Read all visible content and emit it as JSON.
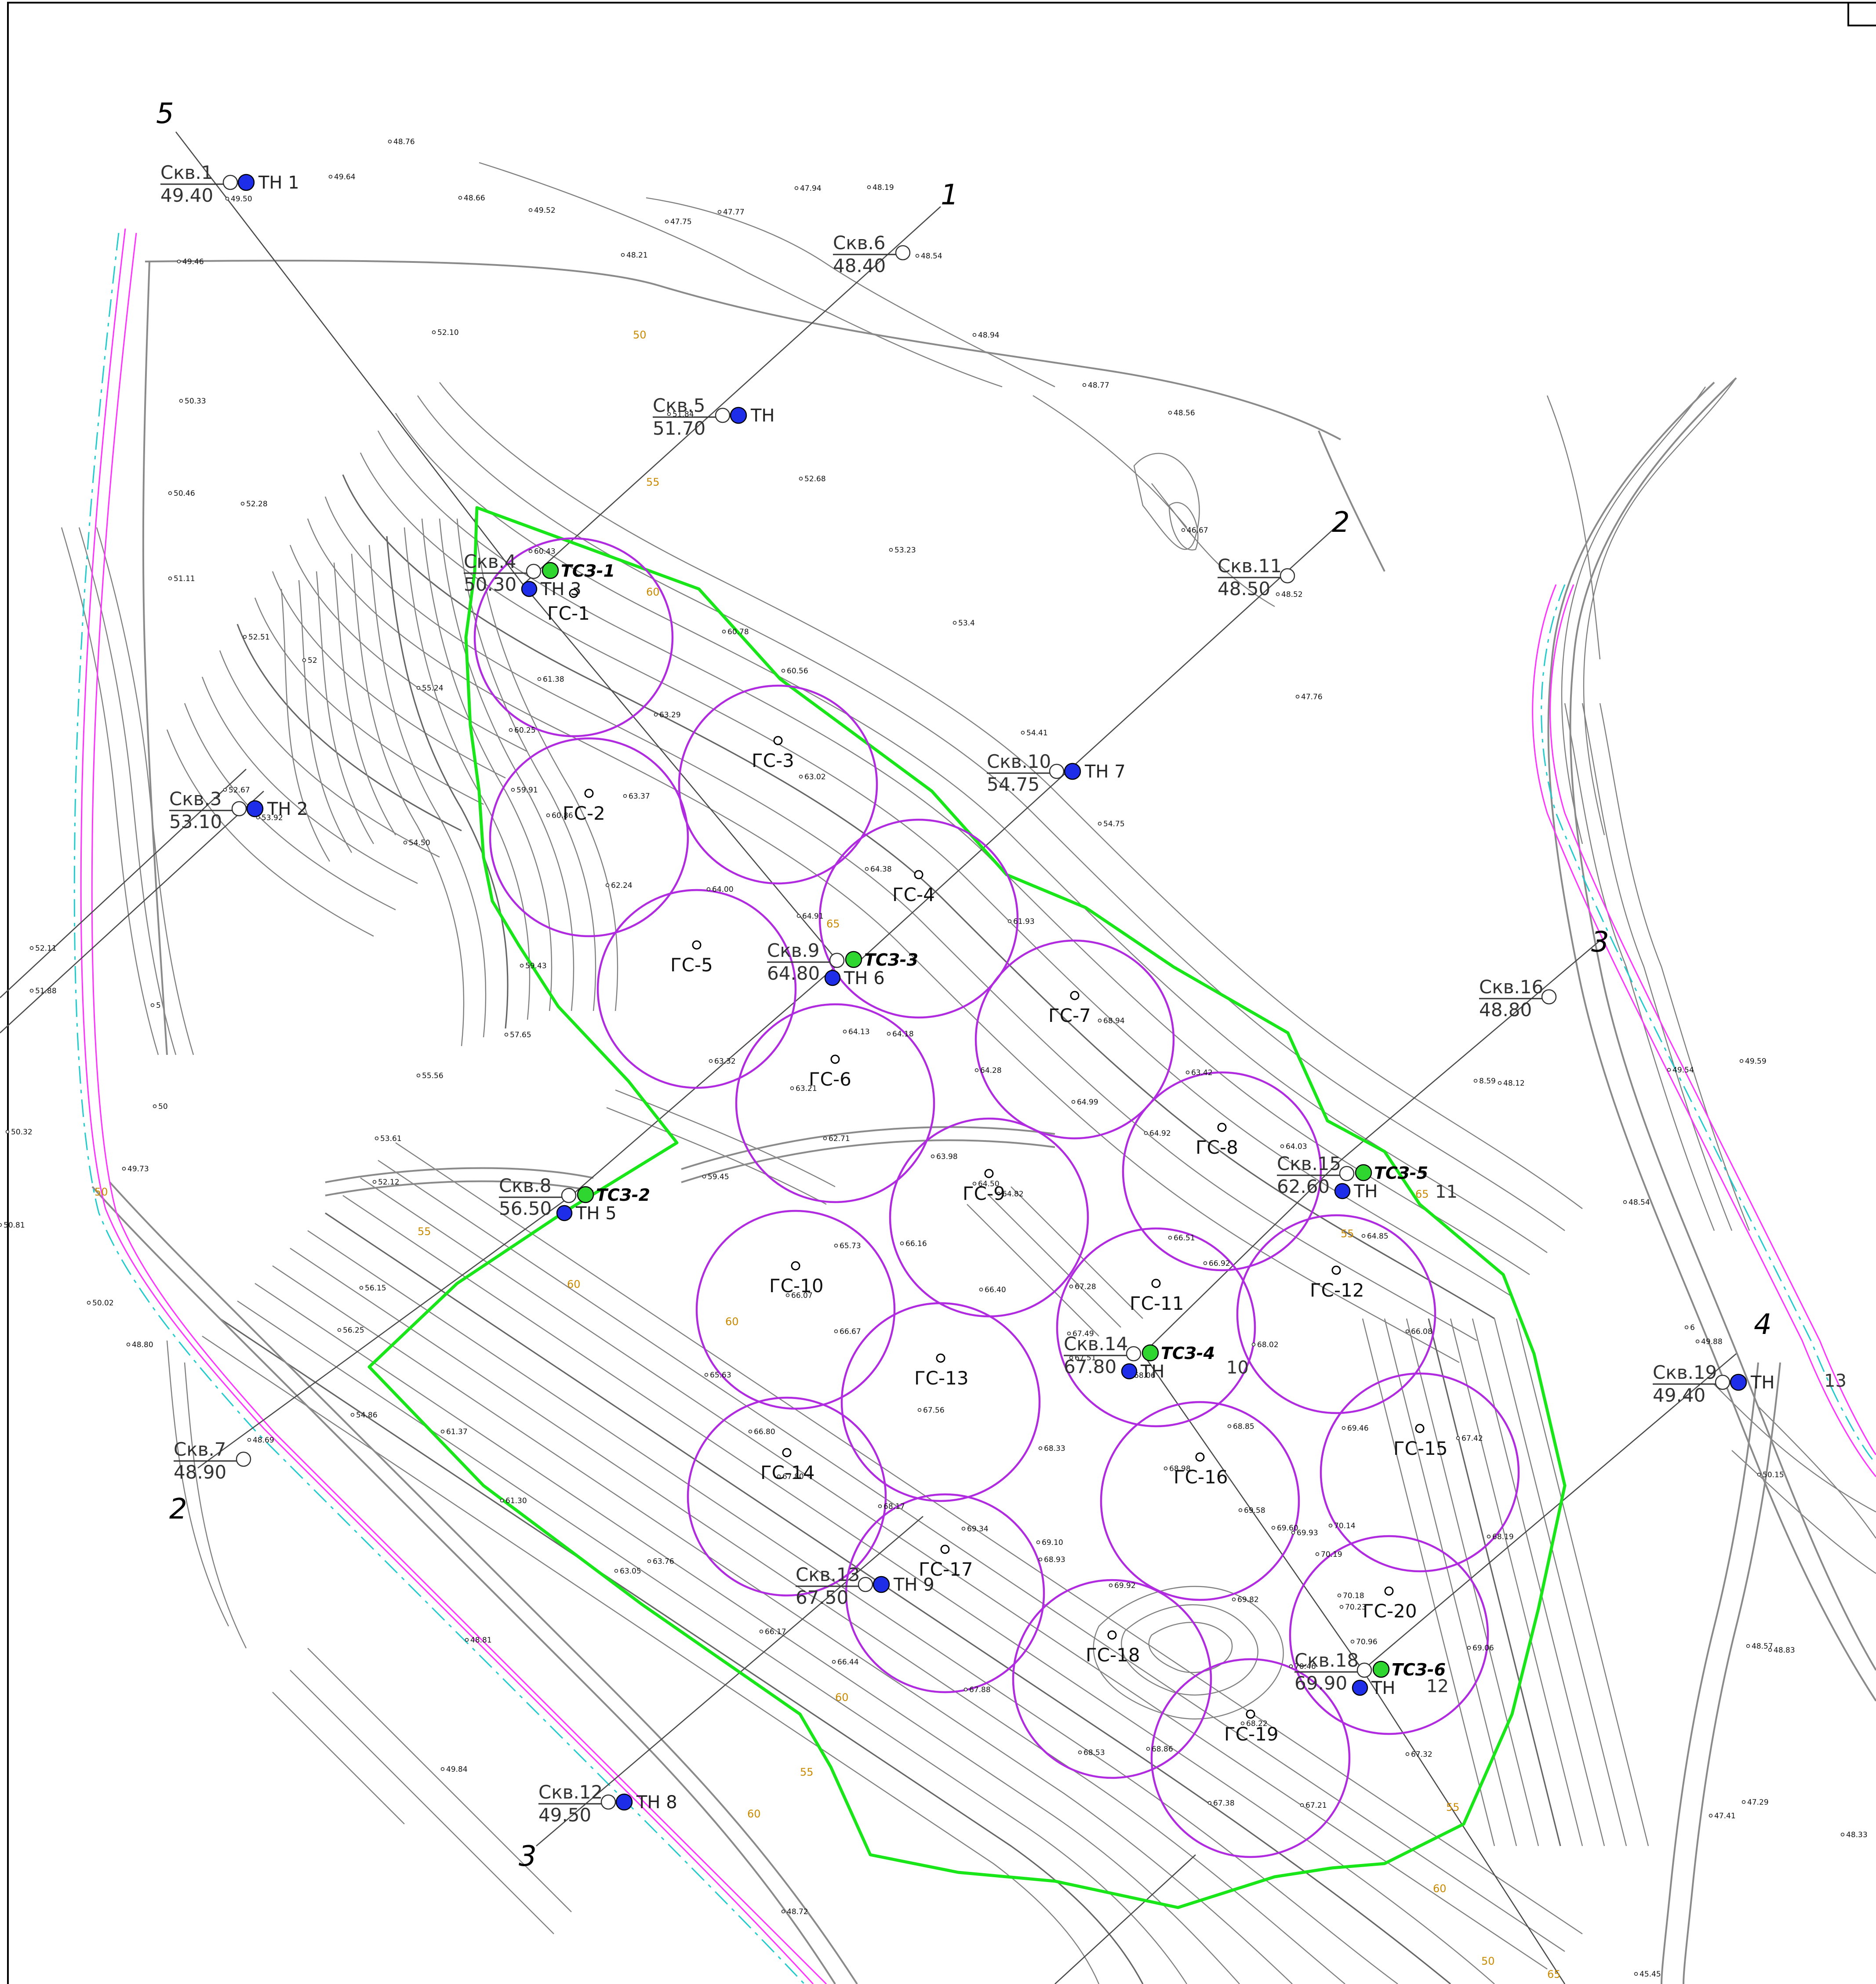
{
  "map": {
    "wells": [
      {
        "id": "w1",
        "label": "Скв.1",
        "elev": "49.40",
        "th": "ТН 1"
      },
      {
        "id": "w3",
        "label": "Скв.3",
        "elev": "53.10",
        "th": "ТН 2"
      },
      {
        "id": "w4",
        "label": "Скв.4",
        "elev": "50.30",
        "th": "ТН 3",
        "tsz": "ТСЗ-1"
      },
      {
        "id": "w5",
        "label": "Скв.5",
        "elev": "51.70",
        "th": "ТН"
      },
      {
        "id": "w6",
        "label": "Скв.6",
        "elev": "48.40"
      },
      {
        "id": "w7",
        "label": "Скв.7",
        "elev": "48.90"
      },
      {
        "id": "w8",
        "label": "Скв.8",
        "elev": "56.50",
        "th": "ТН 5",
        "tsz": "ТСЗ-2"
      },
      {
        "id": "w9",
        "label": "Скв.9",
        "elev": "64.80",
        "th": "ТН 6",
        "tsz": "ТСЗ-3"
      },
      {
        "id": "w10",
        "label": "Скв.10",
        "elev": "54.75",
        "th": "ТН 7"
      },
      {
        "id": "w11",
        "label": "Скв.11",
        "elev": "48.50"
      },
      {
        "id": "w12",
        "label": "Скв.12",
        "elev": "49.50",
        "th": "ТН 8"
      },
      {
        "id": "w13",
        "label": "Скв.13",
        "elev": "67.50",
        "th": "ТН 9"
      },
      {
        "id": "w14",
        "label": "Скв.14",
        "elev": "67.80",
        "th": "ТН",
        "tsz": "ТСЗ-4"
      },
      {
        "id": "w15",
        "label": "Скв.15",
        "elev": "62.60",
        "th": "ТН",
        "tsz": "ТСЗ-5"
      },
      {
        "id": "w16",
        "label": "Скв.16",
        "elev": "48.80"
      },
      {
        "id": "w18",
        "label": "Скв.18",
        "elev": "69.90",
        "th": "ТН",
        "tsz": "ТСЗ-6"
      },
      {
        "id": "w19",
        "label": "Скв.19",
        "elev": "49.40",
        "th": "ТН"
      }
    ],
    "gs_points": [
      "ГС-1",
      "ГС-2",
      "ГС-3",
      "ГС-4",
      "ГС-5",
      "ГС-6",
      "ГС-7",
      "ГС-8",
      "ГС-9",
      "ГС-10",
      "ГС-11",
      "ГС-12",
      "ГС-13",
      "ГС-14",
      "ГС-15",
      "ГС-16",
      "ГС-17",
      "ГС-18",
      "ГС-19",
      "ГС-20"
    ],
    "section_labels": [
      "1",
      "2",
      "2",
      "3",
      "3",
      "4",
      "5"
    ],
    "zone_labels": [
      "10",
      "11",
      "12",
      "13"
    ],
    "contour_labels": [
      "50",
      "55",
      "60",
      "65",
      "50",
      "55",
      "60",
      "60",
      "65",
      "55",
      "60",
      "55",
      "60",
      "55",
      "50",
      "65",
      "60"
    ],
    "spot_heights": [
      "48.76",
      "49.64",
      "49.50",
      "48.66",
      "49.52",
      "47.94",
      "48.19",
      "47.77",
      "47.75",
      "48.21",
      "48.54",
      "49.46",
      "52.10",
      "48.94",
      "48.77",
      "50.33",
      "51.84",
      "52.68",
      "48.56",
      "50.46",
      "52.28",
      "60.43",
      "46.67",
      "53.23",
      "51.11",
      "48.52",
      "60.78",
      "53.4",
      "52.51",
      "52",
      "60.56",
      "61.38",
      "55.24",
      "47.76",
      "63.29",
      "60.25",
      "54.41",
      "63.02",
      "52.67",
      "59.91",
      "63.37",
      "53.92",
      "60.86",
      "54.75",
      "54.50",
      "62.24",
      "64.38",
      "64.00",
      "64.91",
      "61.93",
      "52.11",
      "59.43",
      "51.88",
      "5",
      "64.13",
      "64.18",
      "68.94",
      "57.65",
      "63.32",
      "64.28",
      "63.42",
      "55.56",
      "63.21",
      "64.99",
      "50",
      "50.32",
      "53.61",
      "62.71",
      "64.92",
      "64.03",
      "59.45",
      "63.98",
      "52.12",
      "49.73",
      "64.50",
      "64.82",
      "66.51",
      "64.85",
      "65.73",
      "66.16",
      "50.81",
      "56.15",
      "66.07",
      "66.40",
      "66.92",
      "67.28",
      "50.02",
      "56.25",
      "66.67",
      "67.49",
      "67.51",
      "68.06",
      "68.02",
      "66.08",
      "48.80",
      "65.63",
      "67.56",
      "68.85",
      "69.46",
      "67.42",
      "48.69",
      "54.86",
      "66.80",
      "68.33",
      "61.37",
      "68.98",
      "67.80",
      "68.17",
      "69.58",
      "69.34",
      "69.10",
      "69.60",
      "69.93",
      "70.14",
      "70.19",
      "68.19",
      "61.30",
      "63.05",
      "63.76",
      "68.93",
      "69.92",
      "69.82",
      "70.18",
      "70.23",
      "66.17",
      "70.96",
      "70.46",
      "69.06",
      "66.44",
      "67.88",
      "68.22",
      "68.53",
      "68.86",
      "67.32",
      "49.84",
      "67.38",
      "67.21",
      "48.81",
      "49.54",
      "49.59",
      "8.59",
      "48.12",
      "48.54",
      "6",
      "49.88",
      "50.15",
      "48.57",
      "48.83",
      "47.29",
      "47.41",
      "48.33",
      "45.45",
      "48.72"
    ]
  }
}
